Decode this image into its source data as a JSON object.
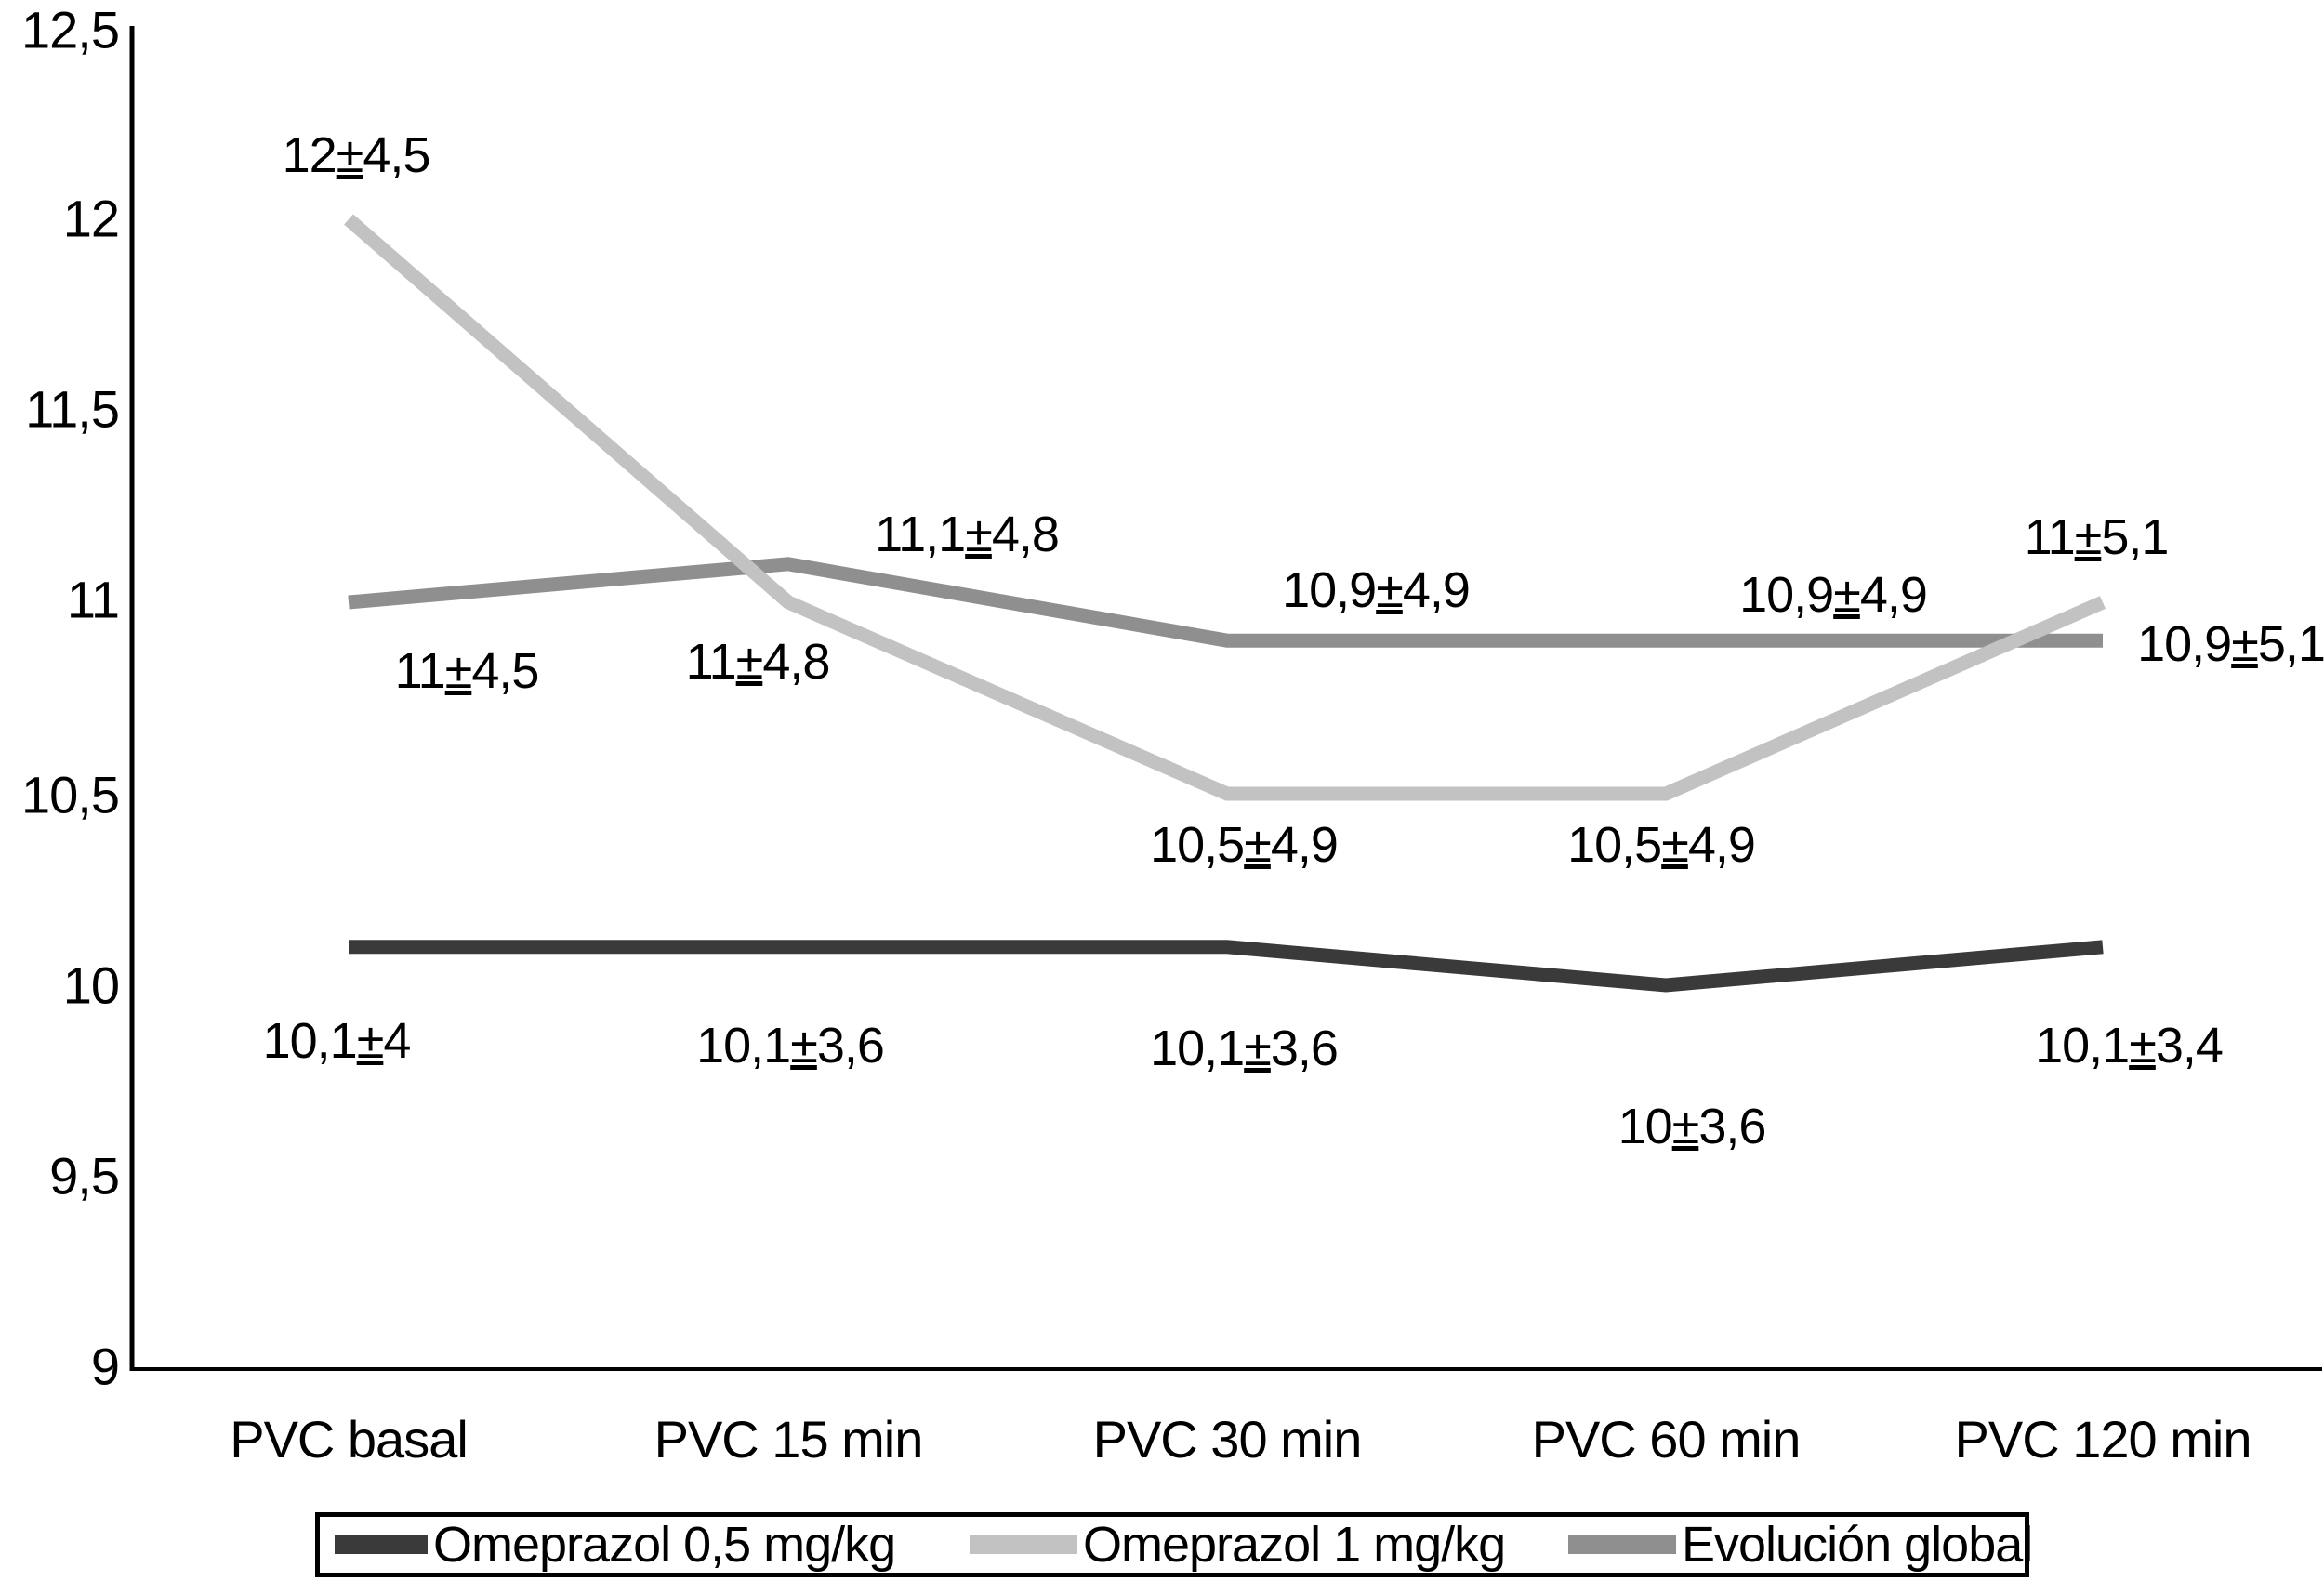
{
  "figure": {
    "background": "#ffffff",
    "axis_color": "#000000"
  },
  "chart_data": {
    "type": "line",
    "title": "",
    "xlabel": "",
    "ylabel": "",
    "grid": false,
    "decimal_style": "comma",
    "label_separator": "±",
    "categories": [
      "PVC basal",
      "PVC 15 min",
      "PVC 30 min",
      "PVC 60 min",
      "PVC 120 min"
    ],
    "y_axis": {
      "min": 9,
      "max": 12.5,
      "ticks": [
        "12,5",
        "12",
        "11,5",
        "11",
        "10,5",
        "10",
        "9,5",
        "9"
      ]
    },
    "series": [
      {
        "name": "Omeprazol 0,5 mg/kg",
        "color": "#3a3a3a",
        "values": [
          10.1,
          10.1,
          10.1,
          10,
          10.1
        ],
        "point_labels": [
          {
            "mean": "10,1",
            "sd": "4"
          },
          {
            "mean": "10,1",
            "sd": "3,6"
          },
          {
            "mean": "10,1",
            "sd": "3,6"
          },
          {
            "mean": "10",
            "sd": "3,6"
          },
          {
            "mean": "10,1",
            "sd": "3,4"
          }
        ]
      },
      {
        "name": "Omeprazol 1 mg/kg",
        "color": "#c2c2c2",
        "values": [
          12,
          11,
          10.5,
          10.5,
          11
        ],
        "point_labels": [
          {
            "mean": "12",
            "sd": "4,5"
          },
          {
            "mean": "11",
            "sd": "4,8"
          },
          {
            "mean": "10,5",
            "sd": "4,9"
          },
          {
            "mean": "10,5",
            "sd": "4,9"
          },
          {
            "mean": "11",
            "sd": "5,1"
          }
        ]
      },
      {
        "name": "Evolución global",
        "color": "#8f8f8f",
        "values": [
          11,
          11.1,
          10.9,
          10.9,
          10.9
        ],
        "point_labels": [
          {
            "mean": "11",
            "sd": "4,5"
          },
          {
            "mean": "11,1",
            "sd": "4,8"
          },
          {
            "mean": "10,9",
            "sd": "4,9"
          },
          {
            "mean": "10,9",
            "sd": "4,9"
          },
          {
            "mean": "10,9",
            "sd": "5,1"
          }
        ]
      }
    ],
    "legend": {
      "position": "bottom",
      "items": [
        "Omeprazol 0,5 mg/kg",
        "Omeprazol 1 mg/kg",
        "Evolución global"
      ]
    }
  }
}
